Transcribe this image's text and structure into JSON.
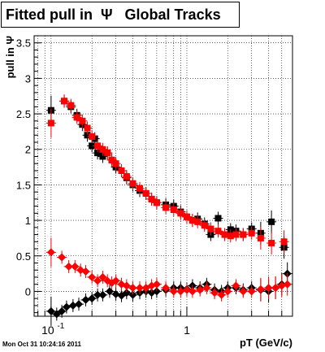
{
  "chart_data": {
    "type": "scatter",
    "title": "Fitted pull in  Ψ   Global Tracks",
    "ylabel": "pull in Ψ",
    "xlabel": "pT (GeV/c)",
    "x_scale": "log",
    "xlim": [
      0.075,
      6.0
    ],
    "ylim": [
      -0.35,
      3.6
    ],
    "grid": true,
    "x_tick_labels": [
      {
        "value": 0.1,
        "base": "10",
        "exp": "-1"
      },
      {
        "value": 1,
        "label": "1"
      }
    ],
    "y_tick_labels": [
      "0",
      "0.5",
      "1",
      "1.5",
      "2",
      "2.5",
      "3",
      "3.5"
    ],
    "y_ticks": [
      0,
      0.5,
      1,
      1.5,
      2,
      2.5,
      3,
      3.5
    ],
    "colors": {
      "black_series": "#000000",
      "red_series": "#ff0000"
    },
    "series": [
      {
        "color": "black",
        "marker": "square",
        "points": [
          [
            0.1,
            2.55
          ],
          [
            0.125,
            2.68
          ],
          [
            0.14,
            2.6
          ],
          [
            0.155,
            2.48
          ],
          [
            0.17,
            2.35
          ],
          [
            0.185,
            2.2
          ],
          [
            0.2,
            2.05
          ],
          [
            0.21,
            2.15
          ],
          [
            0.22,
            1.95
          ],
          [
            0.24,
            1.9
          ],
          [
            0.26,
            1.95
          ],
          [
            0.28,
            1.85
          ],
          [
            0.3,
            1.75
          ],
          [
            0.33,
            1.7
          ],
          [
            0.36,
            1.6
          ],
          [
            0.4,
            1.5
          ],
          [
            0.45,
            1.42
          ],
          [
            0.5,
            1.38
          ],
          [
            0.55,
            1.3
          ],
          [
            0.6,
            1.25
          ],
          [
            0.7,
            1.22
          ],
          [
            0.8,
            1.2
          ],
          [
            0.9,
            1.12
          ],
          [
            1.0,
            1.05
          ],
          [
            1.1,
            1.0
          ],
          [
            1.2,
            1.02
          ],
          [
            1.35,
            0.95
          ],
          [
            1.5,
            0.8
          ],
          [
            1.7,
            1.03
          ],
          [
            1.9,
            0.8
          ],
          [
            2.1,
            0.87
          ],
          [
            2.3,
            0.85
          ],
          [
            2.6,
            0.8
          ],
          [
            3.0,
            0.88
          ],
          [
            3.5,
            0.82
          ],
          [
            4.2,
            0.98
          ],
          [
            5.2,
            0.62
          ]
        ]
      },
      {
        "color": "red",
        "marker": "square",
        "points": [
          [
            0.1,
            2.37
          ],
          [
            0.125,
            2.68
          ],
          [
            0.14,
            2.62
          ],
          [
            0.155,
            2.45
          ],
          [
            0.17,
            2.4
          ],
          [
            0.185,
            2.3
          ],
          [
            0.2,
            2.18
          ],
          [
            0.22,
            2.05
          ],
          [
            0.24,
            2.0
          ],
          [
            0.26,
            1.95
          ],
          [
            0.28,
            1.85
          ],
          [
            0.3,
            1.8
          ],
          [
            0.33,
            1.7
          ],
          [
            0.36,
            1.62
          ],
          [
            0.4,
            1.52
          ],
          [
            0.45,
            1.45
          ],
          [
            0.5,
            1.38
          ],
          [
            0.55,
            1.3
          ],
          [
            0.6,
            1.25
          ],
          [
            0.7,
            1.18
          ],
          [
            0.8,
            1.15
          ],
          [
            0.9,
            1.1
          ],
          [
            1.0,
            1.05
          ],
          [
            1.1,
            1.0
          ],
          [
            1.2,
            0.98
          ],
          [
            1.35,
            0.93
          ],
          [
            1.5,
            0.88
          ],
          [
            1.7,
            0.85
          ],
          [
            1.9,
            0.8
          ],
          [
            2.1,
            0.78
          ],
          [
            2.3,
            0.8
          ],
          [
            2.6,
            0.8
          ],
          [
            3.0,
            0.82
          ],
          [
            3.5,
            0.75
          ],
          [
            4.2,
            0.68
          ],
          [
            5.2,
            0.7
          ]
        ]
      },
      {
        "color": "black",
        "marker": "diamond",
        "points": [
          [
            0.1,
            -0.28
          ],
          [
            0.11,
            -0.32
          ],
          [
            0.12,
            -0.28
          ],
          [
            0.13,
            -0.22
          ],
          [
            0.145,
            -0.2
          ],
          [
            0.16,
            -0.18
          ],
          [
            0.18,
            -0.12
          ],
          [
            0.2,
            -0.1
          ],
          [
            0.22,
            -0.05
          ],
          [
            0.24,
            -0.05
          ],
          [
            0.27,
            0.0
          ],
          [
            0.3,
            -0.04
          ],
          [
            0.33,
            -0.06
          ],
          [
            0.36,
            -0.02
          ],
          [
            0.4,
            -0.05
          ],
          [
            0.45,
            -0.02
          ],
          [
            0.5,
            0.0
          ],
          [
            0.55,
            -0.02
          ],
          [
            0.6,
            0.0
          ],
          [
            0.7,
            0.02
          ],
          [
            0.8,
            0.05
          ],
          [
            0.9,
            0.05
          ],
          [
            1.0,
            0.03
          ],
          [
            1.1,
            0.08
          ],
          [
            1.25,
            0.05
          ],
          [
            1.4,
            0.1
          ],
          [
            1.6,
            0.02
          ],
          [
            1.8,
            0.0
          ],
          [
            2.0,
            0.05
          ],
          [
            2.3,
            0.05
          ],
          [
            2.6,
            0.02
          ],
          [
            3.0,
            0.05
          ],
          [
            3.5,
            0.02
          ],
          [
            4.0,
            0.0
          ],
          [
            4.5,
            0.05
          ],
          [
            5.0,
            0.1
          ],
          [
            5.5,
            0.25
          ]
        ]
      },
      {
        "color": "red",
        "marker": "diamond",
        "points": [
          [
            0.1,
            0.55
          ],
          [
            0.12,
            0.48
          ],
          [
            0.135,
            0.35
          ],
          [
            0.15,
            0.35
          ],
          [
            0.165,
            0.3
          ],
          [
            0.18,
            0.28
          ],
          [
            0.2,
            0.2
          ],
          [
            0.22,
            0.15
          ],
          [
            0.24,
            0.2
          ],
          [
            0.26,
            0.15
          ],
          [
            0.28,
            0.12
          ],
          [
            0.3,
            0.15
          ],
          [
            0.33,
            0.1
          ],
          [
            0.36,
            0.08
          ],
          [
            0.4,
            0.05
          ],
          [
            0.45,
            0.05
          ],
          [
            0.5,
            0.05
          ],
          [
            0.55,
            0.08
          ],
          [
            0.6,
            0.1
          ],
          [
            0.7,
            0.05
          ],
          [
            0.8,
            0.0
          ],
          [
            0.9,
            0.0
          ],
          [
            1.0,
            0.02
          ],
          [
            1.1,
            0.0
          ],
          [
            1.25,
            0.02
          ],
          [
            1.4,
            0.05
          ],
          [
            1.6,
            -0.02
          ],
          [
            1.8,
            -0.05
          ],
          [
            2.0,
            0.0
          ],
          [
            2.3,
            0.08
          ],
          [
            2.6,
            0.0
          ],
          [
            3.0,
            0.0
          ],
          [
            3.5,
            0.03
          ],
          [
            4.0,
            0.05
          ],
          [
            4.5,
            0.05
          ],
          [
            5.0,
            0.08
          ],
          [
            5.5,
            0.1
          ]
        ]
      }
    ]
  },
  "footer": "Mon Oct 31 10:24:16 2011"
}
